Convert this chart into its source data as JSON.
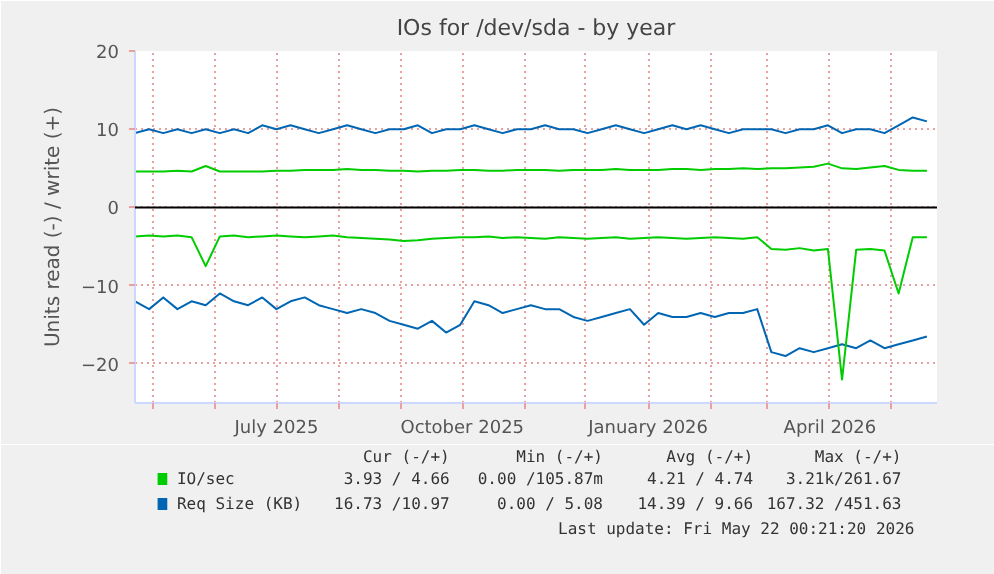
{
  "chart_data": {
    "type": "line",
    "title": "IOs for /dev/sda - by year",
    "ylabel": "Units read (-) / write (+)",
    "x": [
      "2025-04-22",
      "2025-04-29",
      "2025-05-06",
      "2025-05-13",
      "2025-05-20",
      "2025-05-27",
      "2025-06-03",
      "2025-06-10",
      "2025-06-17",
      "2025-06-24",
      "2025-07-01",
      "2025-07-08",
      "2025-07-15",
      "2025-07-22",
      "2025-07-29",
      "2025-08-05",
      "2025-08-12",
      "2025-08-19",
      "2025-08-26",
      "2025-09-02",
      "2025-09-09",
      "2025-09-16",
      "2025-09-23",
      "2025-09-30",
      "2025-10-07",
      "2025-10-14",
      "2025-10-21",
      "2025-10-28",
      "2025-11-04",
      "2025-11-11",
      "2025-11-18",
      "2025-11-25",
      "2025-12-02",
      "2025-12-09",
      "2025-12-16",
      "2025-12-23",
      "2025-12-30",
      "2026-01-06",
      "2026-01-13",
      "2026-01-20",
      "2026-01-27",
      "2026-02-03",
      "2026-02-10",
      "2026-02-17",
      "2026-02-24",
      "2026-03-03",
      "2026-03-10",
      "2026-03-17",
      "2026-03-24",
      "2026-03-31",
      "2026-04-07",
      "2026-04-14",
      "2026-04-21",
      "2026-04-28",
      "2026-05-05",
      "2026-05-12",
      "2026-05-19"
    ],
    "series": [
      {
        "color": "#0066b3",
        "values": [
          -12,
          -13,
          -11.5,
          -13,
          -12,
          -12.5,
          -11,
          -12,
          -12.5,
          -11.5,
          -13,
          -12,
          -11.5,
          -12.5,
          -13,
          -13.5,
          -13,
          -13.5,
          -14.5,
          -15,
          -15.5,
          -14.5,
          -16,
          -15,
          -12,
          -12.5,
          -13.5,
          -13,
          -12.5,
          -13,
          -13,
          -14,
          -14.5,
          -14,
          -13.5,
          -13,
          -15,
          -13.5,
          -14,
          -14,
          -13.5,
          -14,
          -13.5,
          -13.5,
          -13,
          -18.5,
          -19,
          -18,
          -18.5,
          -18,
          -17.5,
          -18,
          -17,
          -18,
          -17.5,
          -17,
          -16.5
        ]
      },
      {
        "name": "Req Size (KB)",
        "color": "#0066b3",
        "values": [
          9.5,
          10,
          9.5,
          10,
          9.5,
          10,
          9.5,
          10,
          9.5,
          10.5,
          10,
          10.5,
          10,
          9.5,
          10,
          10.5,
          10,
          9.5,
          10,
          10,
          10.5,
          9.5,
          10,
          10,
          10.5,
          10,
          9.5,
          10,
          10,
          10.5,
          10,
          10,
          9.5,
          10,
          10.5,
          10,
          9.5,
          10,
          10.5,
          10,
          10.5,
          10,
          9.5,
          10,
          10,
          10,
          9.5,
          10,
          10,
          10.5,
          9.5,
          10,
          10,
          9.5,
          10.5,
          11.5,
          11
        ]
      },
      {
        "color": "#00cc00",
        "values": [
          -3.7,
          -3.6,
          -3.7,
          -3.6,
          -3.8,
          -7.5,
          -3.7,
          -3.6,
          -3.8,
          -3.7,
          -3.6,
          -3.7,
          -3.8,
          -3.7,
          -3.6,
          -3.8,
          -3.9,
          -4,
          -4.1,
          -4.3,
          -4.2,
          -4,
          -3.9,
          -3.8,
          -3.8,
          -3.7,
          -3.9,
          -3.8,
          -3.9,
          -4,
          -3.8,
          -3.9,
          -4,
          -3.9,
          -3.8,
          -4,
          -3.9,
          -3.8,
          -3.9,
          -4,
          -3.9,
          -3.8,
          -3.9,
          -4,
          -3.8,
          -5.3,
          -5.4,
          -5.2,
          -5.5,
          -5.3,
          -22,
          -5.4,
          -5.3,
          -5.5,
          -11,
          -3.8,
          -3.8
        ]
      },
      {
        "name": "IO/sec",
        "color": "#00cc00",
        "values": [
          4.6,
          4.6,
          4.6,
          4.7,
          4.6,
          5.3,
          4.6,
          4.6,
          4.6,
          4.6,
          4.7,
          4.7,
          4.8,
          4.8,
          4.8,
          4.9,
          4.8,
          4.8,
          4.7,
          4.7,
          4.6,
          4.7,
          4.7,
          4.8,
          4.8,
          4.7,
          4.7,
          4.8,
          4.8,
          4.8,
          4.7,
          4.8,
          4.8,
          4.8,
          4.9,
          4.8,
          4.8,
          4.8,
          4.9,
          4.9,
          4.8,
          4.9,
          4.9,
          5,
          4.9,
          5,
          5,
          5.1,
          5.2,
          5.6,
          5,
          4.9,
          5.1,
          5.3,
          4.8,
          4.7,
          4.7
        ]
      }
    ],
    "ylim": [
      -25,
      20
    ],
    "yticks": [
      -20,
      -10,
      0,
      10,
      20
    ],
    "xlim": [
      "2025-04-22",
      "2026-05-24"
    ],
    "xticks": [
      {
        "value": "2025-05-01",
        "label": null
      },
      {
        "value": "2025-06-01",
        "label": null
      },
      {
        "value": "2025-07-01",
        "label": "July 2025"
      },
      {
        "value": "2025-08-01",
        "label": null
      },
      {
        "value": "2025-09-01",
        "label": null
      },
      {
        "value": "2025-10-01",
        "label": "October 2025"
      },
      {
        "value": "2025-11-01",
        "label": null
      },
      {
        "value": "2025-12-01",
        "label": null
      },
      {
        "value": "2026-01-01",
        "label": "January 2026"
      },
      {
        "value": "2026-02-01",
        "label": null
      },
      {
        "value": "2026-03-01",
        "label": null
      },
      {
        "value": "2026-04-01",
        "label": "April 2026"
      },
      {
        "value": "2026-05-01",
        "label": null
      }
    ],
    "ref_lines": [
      {
        "axis": "y",
        "value": 0,
        "color": "#000000"
      }
    ],
    "grid": true,
    "legend": "bottom left",
    "marker": "none",
    "line_style": "solid",
    "annotations": [
      "Cur (-/+)",
      "Min (-/+)",
      "Avg (-/+)",
      "Max (-/+)",
      "3.93 / 4.66",
      "0.00 /105.87m",
      "4.21 / 4.74",
      "3.21k/261.67",
      "16.73 /10.97",
      "0.00 / 5.08",
      "14.39 / 9.66",
      "167.32 /451.63",
      "Last update: Fri May 22 00:21:20 2026"
    ]
  }
}
